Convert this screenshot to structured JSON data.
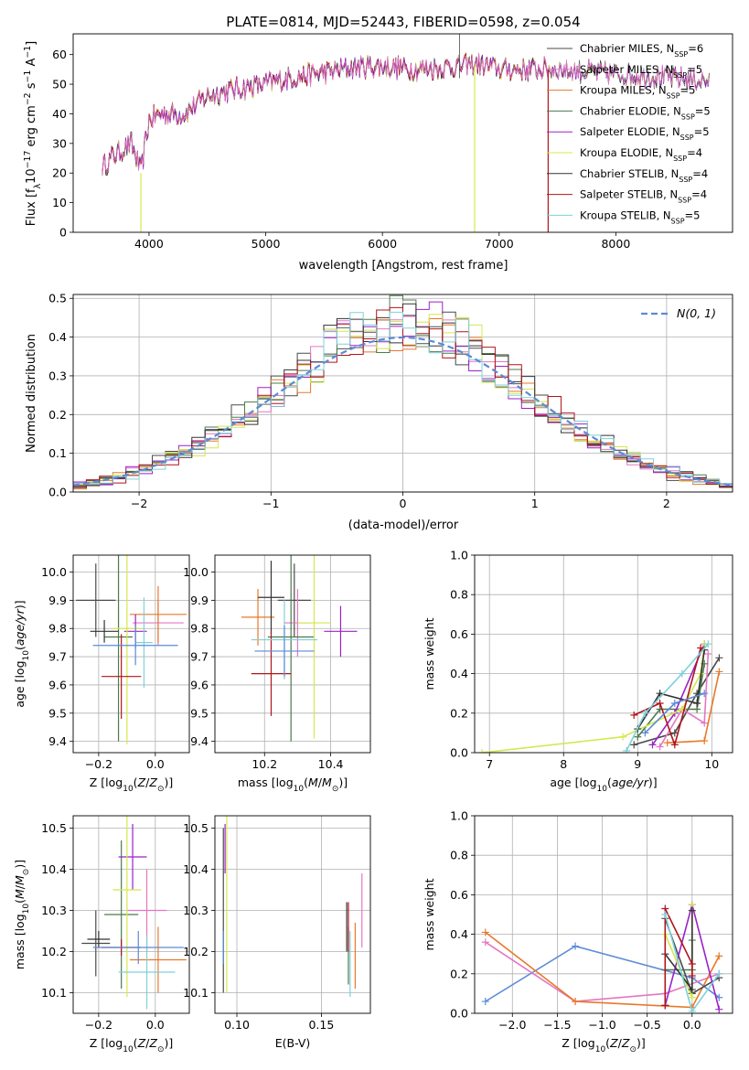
{
  "figure_title": "PLATE=0814, MJD=52443, FIBERID=0598, z=0.054",
  "colors": {
    "chabrier_miles": "#4a4a4a",
    "salpeter_miles": "#e377c2",
    "kroupa_miles": "#e8782a",
    "chabrier_elodie": "#4c7a4c",
    "salpeter_elodie": "#9a22c8",
    "kroupa_elodie": "#d4e84d",
    "chabrier_stelib": "#333333",
    "salpeter_stelib": "#b0141c",
    "kroupa_stelib": "#7fd0da",
    "normal": "#5b8bd6"
  },
  "chart_data": [
    {
      "id": "spectrum",
      "type": "line",
      "title": "PLATE=0814, MJD=52443, FIBERID=0598, z=0.054",
      "xlabel": "wavelength [Angstrom, rest frame]",
      "ylabel": "Flux [fλ10⁻¹⁷ erg cm⁻² s⁻¹ A⁻¹]",
      "xlim": [
        3350,
        9000
      ],
      "ylim": [
        0,
        67
      ],
      "xticks": [
        4000,
        5000,
        6000,
        7000,
        8000
      ],
      "yticks": [
        0,
        10,
        20,
        30,
        40,
        50,
        60
      ],
      "legend_position": "right",
      "series": [
        {
          "name": "Chabrier MILES, N_SSP=6"
        },
        {
          "name": "Salpeter MILES, N_SSP=5"
        },
        {
          "name": "Kroupa MILES, N_SSP=5"
        },
        {
          "name": "Chabrier ELODIE, N_SSP=5"
        },
        {
          "name": "Salpeter ELODIE, N_SSP=5"
        },
        {
          "name": "Kroupa ELODIE, N_SSP=4"
        },
        {
          "name": "Chabrier STELIB, N_SSP=4"
        },
        {
          "name": "Salpeter STELIB, N_SSP=4"
        },
        {
          "name": "Kroupa STELIB, N_SSP=5"
        }
      ],
      "continuum": {
        "x": [
          3600,
          3700,
          3850,
          3930,
          4000,
          4100,
          4300,
          4500,
          4700,
          5000,
          5200,
          5500,
          5800,
          6000,
          6300,
          6600,
          6800,
          7000,
          7200,
          7500,
          7800,
          8200,
          8500,
          8800
        ],
        "y": [
          22,
          26,
          30,
          20,
          38,
          40,
          40,
          46,
          48,
          50,
          52,
          54,
          56,
          56,
          55,
          56,
          57,
          55,
          55,
          55,
          54,
          53,
          52,
          51
        ]
      }
    },
    {
      "id": "residuals",
      "type": "histogram",
      "xlabel": "(data-model)/error",
      "ylabel": "Normed distribution",
      "xlim": [
        -2.5,
        2.5
      ],
      "ylim": [
        0,
        0.51
      ],
      "xticks": [
        -2,
        -1,
        0,
        1,
        2
      ],
      "yticks": [
        0.0,
        0.1,
        0.2,
        0.3,
        0.4,
        0.5
      ],
      "legend": "N(0,1)",
      "legend_position": "top-right",
      "bin_width": 0.1
    },
    {
      "id": "age_vs_Z",
      "type": "errorbar",
      "xlabel": "Z [log10(Z/Z⊙)]",
      "ylabel": "age  [log10(age/yr)]",
      "xlim": [
        -0.29,
        0.12
      ],
      "ylim": [
        9.36,
        10.06
      ],
      "xticks": [
        -0.2,
        0.0
      ],
      "yticks": [
        9.4,
        9.5,
        9.6,
        9.7,
        9.8,
        9.9,
        10.0
      ],
      "points": [
        {
          "x": -0.21,
          "y": 9.9,
          "xerr": 0.07,
          "yerr": 0.13
        },
        {
          "x": 0.01,
          "y": 9.82,
          "xerr": 0.09,
          "yerr": 0.08
        },
        {
          "x": 0.01,
          "y": 9.85,
          "xerr": 0.1,
          "yerr": 0.1
        },
        {
          "x": -0.13,
          "y": 9.77,
          "xerr": 0.05,
          "yerr": 0.37
        },
        {
          "x": -0.07,
          "y": 9.79,
          "xerr": 0.04,
          "yerr": 0.06
        },
        {
          "x": -0.1,
          "y": 9.8,
          "xerr": 0.05,
          "yerr": 0.41
        },
        {
          "x": -0.18,
          "y": 9.79,
          "xerr": 0.05,
          "yerr": 0.04
        },
        {
          "x": -0.12,
          "y": 9.63,
          "xerr": 0.07,
          "yerr": 0.15
        },
        {
          "x": -0.04,
          "y": 9.75,
          "xerr": 0.03,
          "yerr": 0.16
        },
        {
          "x": -0.07,
          "y": 9.74,
          "xerr": 0.15,
          "yerr": 0.07
        }
      ]
    },
    {
      "id": "age_vs_mass",
      "type": "errorbar",
      "xlabel": "mass [log10(M/M⊙)]",
      "ylabel": "",
      "xlim": [
        10.05,
        10.52
      ],
      "ylim": [
        9.36,
        10.06
      ],
      "xticks": [
        10.2,
        10.4
      ],
      "yticks": [
        9.4,
        9.5,
        9.6,
        9.7,
        9.8,
        9.9,
        10.0
      ],
      "points": [
        {
          "x": 10.29,
          "y": 9.9,
          "xerr": 0.05,
          "yerr": 0.13
        },
        {
          "x": 10.3,
          "y": 9.82,
          "xerr": 0.04,
          "yerr": 0.12
        },
        {
          "x": 10.18,
          "y": 9.84,
          "xerr": 0.05,
          "yerr": 0.1
        },
        {
          "x": 10.28,
          "y": 9.77,
          "xerr": 0.07,
          "yerr": 0.37
        },
        {
          "x": 10.43,
          "y": 9.79,
          "xerr": 0.05,
          "yerr": 0.09
        },
        {
          "x": 10.35,
          "y": 9.82,
          "xerr": 0.05,
          "yerr": 0.41
        },
        {
          "x": 10.22,
          "y": 9.91,
          "xerr": 0.04,
          "yerr": 0.13
        },
        {
          "x": 10.22,
          "y": 9.64,
          "xerr": 0.06,
          "yerr": 0.15
        },
        {
          "x": 10.26,
          "y": 9.76,
          "xerr": 0.1,
          "yerr": 0.14
        },
        {
          "x": 10.26,
          "y": 9.72,
          "xerr": 0.09,
          "yerr": 0.09
        }
      ]
    },
    {
      "id": "weight_vs_age",
      "type": "line",
      "xlabel": "age  [log10(age/yr)]",
      "ylabel": "mass weight",
      "xlim": [
        6.8,
        10.28
      ],
      "ylim": [
        0,
        1.0
      ],
      "xticks": [
        7,
        8,
        9,
        10
      ],
      "yticks": [
        0.0,
        0.2,
        0.4,
        0.6,
        0.8,
        1.0
      ],
      "series": [
        {
          "key": "chabrier_miles",
          "x": [
            8.95,
            9.5,
            9.8,
            10.1
          ],
          "y": [
            0.04,
            0.1,
            0.3,
            0.48
          ]
        },
        {
          "key": "salpeter_miles",
          "x": [
            9.3,
            9.6,
            9.9,
            9.95
          ],
          "y": [
            0.03,
            0.22,
            0.15,
            0.5
          ]
        },
        {
          "key": "kroupa_miles",
          "x": [
            9.4,
            9.9,
            10.1
          ],
          "y": [
            0.05,
            0.06,
            0.41
          ]
        },
        {
          "key": "chabrier_elodie",
          "x": [
            9.0,
            9.3,
            9.8,
            9.9
          ],
          "y": [
            0.08,
            0.22,
            0.22,
            0.45
          ]
        },
        {
          "key": "salpeter_elodie",
          "x": [
            9.2,
            9.5,
            9.9
          ],
          "y": [
            0.04,
            0.2,
            0.55
          ]
        },
        {
          "key": "kroupa_elodie",
          "x": [
            6.9,
            8.8,
            9.6,
            9.85,
            9.9
          ],
          "y": [
            0.0,
            0.08,
            0.22,
            0.4,
            0.55
          ]
        },
        {
          "key": "chabrier_stelib",
          "x": [
            9.0,
            9.3,
            9.8,
            9.9
          ],
          "y": [
            0.12,
            0.3,
            0.25,
            0.52
          ]
        },
        {
          "key": "salpeter_stelib",
          "x": [
            8.95,
            9.3,
            9.5,
            9.85
          ],
          "y": [
            0.19,
            0.25,
            0.04,
            0.53
          ]
        },
        {
          "key": "kroupa_stelib",
          "x": [
            8.85,
            9.1,
            9.6,
            9.95
          ],
          "y": [
            0.01,
            0.2,
            0.4,
            0.55
          ]
        },
        {
          "key": "normal",
          "x": [
            9.1,
            9.5,
            9.9
          ],
          "y": [
            0.1,
            0.25,
            0.3
          ]
        }
      ]
    },
    {
      "id": "mass_vs_Z",
      "type": "errorbar",
      "xlabel": "Z [log10(Z/Z⊙)]",
      "ylabel": "mass [log10(M/M⊙)]",
      "xlim": [
        -0.29,
        0.12
      ],
      "ylim": [
        10.05,
        10.53
      ],
      "xticks": [
        -0.2,
        0.0
      ],
      "yticks": [
        10.1,
        10.2,
        10.3,
        10.4,
        10.5
      ],
      "points": [
        {
          "x": -0.21,
          "y": 10.22,
          "xerr": 0.05,
          "yerr": 0.08
        },
        {
          "x": -0.03,
          "y": 10.3,
          "xerr": 0.07,
          "yerr": 0.1
        },
        {
          "x": 0.01,
          "y": 10.18,
          "xerr": 0.1,
          "yerr": 0.08
        },
        {
          "x": -0.12,
          "y": 10.29,
          "xerr": 0.06,
          "yerr": 0.18
        },
        {
          "x": -0.08,
          "y": 10.43,
          "xerr": 0.05,
          "yerr": 0.08
        },
        {
          "x": -0.1,
          "y": 10.35,
          "xerr": 0.05,
          "yerr": 0.26
        },
        {
          "x": -0.2,
          "y": 10.23,
          "xerr": 0.04,
          "yerr": 0.02
        },
        {
          "x": -0.12,
          "y": 10.21,
          "xerr": 0.07,
          "yerr": 0.02
        },
        {
          "x": -0.03,
          "y": 10.15,
          "xerr": 0.1,
          "yerr": 0.09
        },
        {
          "x": -0.06,
          "y": 10.21,
          "xerr": 0.16,
          "yerr": 0.04
        }
      ]
    },
    {
      "id": "mass_vs_ebv",
      "type": "errorbar",
      "xlabel": "E(B-V)",
      "ylabel": "",
      "xlim": [
        0.087,
        0.179
      ],
      "ylim": [
        10.05,
        10.53
      ],
      "xticks": [
        0.1,
        0.15
      ],
      "yticks": [
        10.1,
        10.2,
        10.3,
        10.4,
        10.5
      ],
      "points": [
        {
          "x": 0.092,
          "y": 10.3,
          "xerr": 0,
          "yerr": 0.2
        },
        {
          "x": 0.174,
          "y": 10.3,
          "xerr": 0,
          "yerr": 0.09
        },
        {
          "x": 0.17,
          "y": 10.19,
          "xerr": 0,
          "yerr": 0.08
        },
        {
          "x": 0.166,
          "y": 10.19,
          "xerr": 0,
          "yerr": 0.07
        },
        {
          "x": 0.093,
          "y": 10.45,
          "xerr": 0,
          "yerr": 0.06
        },
        {
          "x": 0.094,
          "y": 10.33,
          "xerr": 0,
          "yerr": 0.23
        },
        {
          "x": 0.165,
          "y": 10.26,
          "xerr": 0,
          "yerr": 0.06
        },
        {
          "x": 0.166,
          "y": 10.26,
          "xerr": 0,
          "yerr": 0.06
        },
        {
          "x": 0.167,
          "y": 10.17,
          "xerr": 0,
          "yerr": 0.08
        },
        {
          "x": 0.092,
          "y": 10.21,
          "xerr": 0,
          "yerr": 0.04
        }
      ]
    },
    {
      "id": "weight_vs_Z",
      "type": "line",
      "xlabel": "Z [log10(Z/Z⊙)]",
      "ylabel": "mass weight",
      "xlim": [
        -2.42,
        0.45
      ],
      "ylim": [
        0,
        1.0
      ],
      "xticks": [
        -2.0,
        -1.5,
        -1.0,
        -0.5,
        0.0
      ],
      "yticks": [
        0.0,
        0.2,
        0.4,
        0.6,
        0.8,
        1.0
      ],
      "series": [
        {
          "key": "normal",
          "x": [
            -2.3,
            -1.3,
            0.0,
            0.3
          ],
          "y": [
            0.06,
            0.34,
            0.18,
            0.08
          ]
        },
        {
          "key": "salpeter_miles",
          "x": [
            -2.3,
            -1.3,
            -0.3,
            0.3
          ],
          "y": [
            0.36,
            0.06,
            0.1,
            0.2
          ]
        },
        {
          "key": "kroupa_miles",
          "x": [
            -2.3,
            -1.3,
            0.0,
            0.3
          ],
          "y": [
            0.41,
            0.06,
            0.03,
            0.29
          ]
        },
        {
          "key": "chabrier_miles",
          "x": [
            -0.3,
            0.0,
            0.3
          ],
          "y": [
            0.48,
            0.1,
            0.18
          ]
        },
        {
          "key": "chabrier_elodie",
          "x": [
            -0.3,
            0.0,
            0.0
          ],
          "y": [
            0.22,
            0.22,
            0.37
          ]
        },
        {
          "key": "salpeter_elodie",
          "x": [
            -0.3,
            0.0,
            0.3
          ],
          "y": [
            0.04,
            0.55,
            0.02
          ]
        },
        {
          "key": "kroupa_elodie",
          "x": [
            -0.3,
            0.0,
            0.0
          ],
          "y": [
            0.4,
            0.08,
            0.55
          ]
        },
        {
          "key": "chabrier_stelib",
          "x": [
            -0.3,
            0.0,
            0.0
          ],
          "y": [
            0.3,
            0.12,
            0.52
          ]
        },
        {
          "key": "salpeter_stelib",
          "x": [
            -0.3,
            -0.3,
            0.0,
            0.0
          ],
          "y": [
            0.04,
            0.53,
            0.25,
            0.19
          ]
        },
        {
          "key": "kroupa_stelib",
          "x": [
            -0.3,
            0.0,
            0.3
          ],
          "y": [
            0.5,
            0.01,
            0.2
          ]
        }
      ]
    }
  ]
}
